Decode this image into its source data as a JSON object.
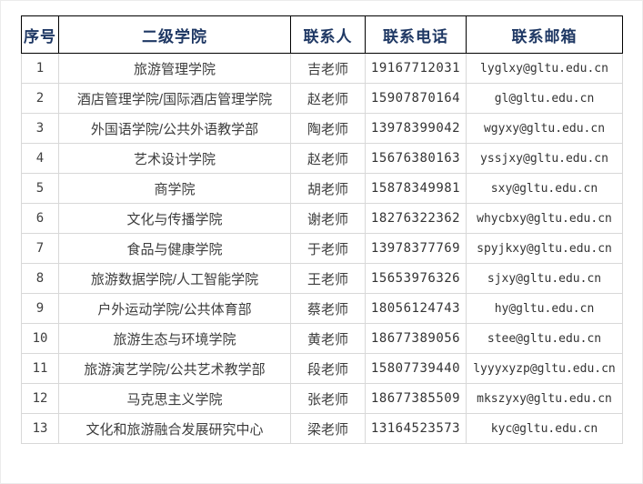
{
  "table": {
    "columns": [
      {
        "key": "seq",
        "label": "序号"
      },
      {
        "key": "college",
        "label": "二级学院"
      },
      {
        "key": "contact",
        "label": "联系人"
      },
      {
        "key": "phone",
        "label": "联系电话"
      },
      {
        "key": "email",
        "label": "联系邮箱"
      }
    ],
    "rows": [
      {
        "seq": "1",
        "college": "旅游管理学院",
        "contact": "吉老师",
        "phone": "19167712031",
        "email": "lyglxy@gltu.edu.cn"
      },
      {
        "seq": "2",
        "college": "酒店管理学院/国际酒店管理学院",
        "contact": "赵老师",
        "phone": "15907870164",
        "email": "gl@gltu.edu.cn"
      },
      {
        "seq": "3",
        "college": "外国语学院/公共外语教学部",
        "contact": "陶老师",
        "phone": "13978399042",
        "email": "wgyxy@gltu.edu.cn"
      },
      {
        "seq": "4",
        "college": "艺术设计学院",
        "contact": "赵老师",
        "phone": "15676380163",
        "email": "yssjxy@gltu.edu.cn"
      },
      {
        "seq": "5",
        "college": "商学院",
        "contact": "胡老师",
        "phone": "15878349981",
        "email": "sxy@gltu.edu.cn"
      },
      {
        "seq": "6",
        "college": "文化与传播学院",
        "contact": "谢老师",
        "phone": "18276322362",
        "email": "whycbxy@gltu.edu.cn"
      },
      {
        "seq": "7",
        "college": "食品与健康学院",
        "contact": "于老师",
        "phone": "13978377769",
        "email": "spyjkxy@gltu.edu.cn"
      },
      {
        "seq": "8",
        "college": "旅游数据学院/人工智能学院",
        "contact": "王老师",
        "phone": "15653976326",
        "email": "sjxy@gltu.edu.cn"
      },
      {
        "seq": "9",
        "college": "户外运动学院/公共体育部",
        "contact": "蔡老师",
        "phone": "18056124743",
        "email": "hy@gltu.edu.cn"
      },
      {
        "seq": "10",
        "college": "旅游生态与环境学院",
        "contact": "黄老师",
        "phone": "18677389056",
        "email": "stee@gltu.edu.cn"
      },
      {
        "seq": "11",
        "college": "旅游演艺学院/公共艺术教学部",
        "contact": "段老师",
        "phone": "15807739440",
        "email": "lyyyxyzp@gltu.edu.cn"
      },
      {
        "seq": "12",
        "college": "马克思主义学院",
        "contact": "张老师",
        "phone": "18677385509",
        "email": "mkszyxy@gltu.edu.cn"
      },
      {
        "seq": "13",
        "college": "文化和旅游融合发展研究中心",
        "contact": "梁老师",
        "phone": "13164523573",
        "email": "kyc@gltu.edu.cn"
      }
    ]
  },
  "colors": {
    "header_text": "#1f3864",
    "header_border": "#000000",
    "grid_border": "#d8d8d8",
    "body_text": "#3d3d3d",
    "background": "#ffffff"
  }
}
